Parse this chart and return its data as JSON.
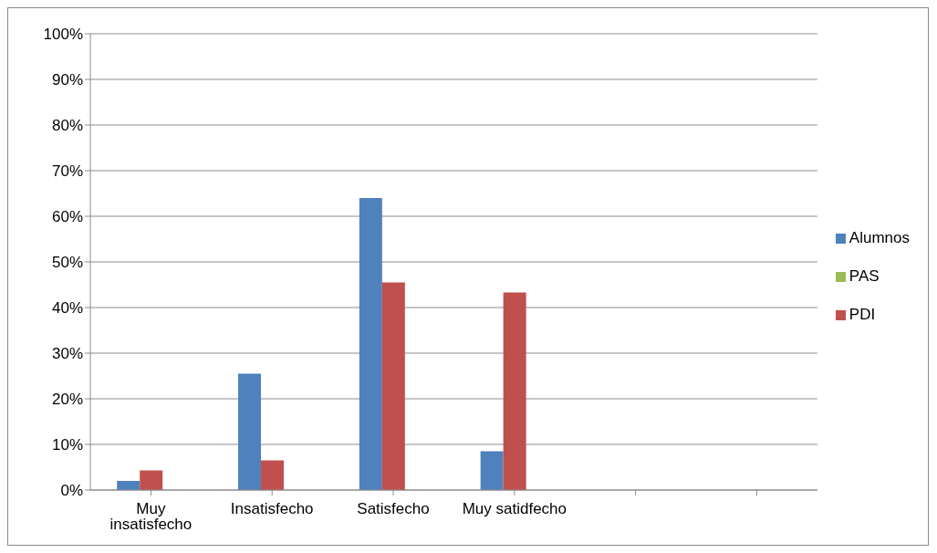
{
  "chart_data": {
    "type": "bar",
    "categories": [
      "Muy insatisfecho",
      "Insatisfecho",
      "Satisfecho",
      "Muy satidfecho",
      null,
      null
    ],
    "series": [
      {
        "name": "Alumnos",
        "color": "#4f81bd",
        "values": [
          2,
          25.5,
          64,
          8.5,
          null,
          null
        ]
      },
      {
        "name": "PDI",
        "color": "#c0504d",
        "values": [
          4.3,
          6.5,
          45.5,
          43.3,
          null,
          null
        ]
      },
      {
        "name": "PAS",
        "color": "#9bbb59",
        "values": [
          0,
          0,
          0,
          0,
          null,
          null
        ]
      }
    ],
    "ylim": [
      0,
      100
    ],
    "yticks": [
      {
        "value": 0,
        "label": "0%"
      },
      {
        "value": 10,
        "label": "10%"
      },
      {
        "value": 20,
        "label": "20%"
      },
      {
        "value": 30,
        "label": "30%"
      },
      {
        "value": 40,
        "label": "40%"
      },
      {
        "value": 50,
        "label": "50%"
      },
      {
        "value": 60,
        "label": "60%"
      },
      {
        "value": 70,
        "label": "70%"
      },
      {
        "value": 80,
        "label": "80%"
      },
      {
        "value": 90,
        "label": "90%"
      },
      {
        "value": 100,
        "label": "100%"
      }
    ],
    "grid": "y",
    "legend": "right"
  }
}
